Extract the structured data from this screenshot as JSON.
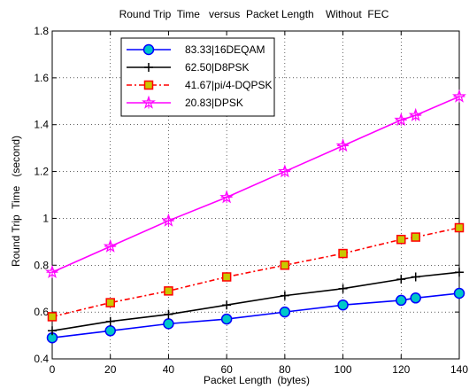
{
  "chart_data": {
    "type": "line",
    "title": "Round Trip  Time   versus  Packet Length    Without  FEC",
    "xlabel": "Packet Length  (bytes)",
    "ylabel": "Round Trip  Time   (second)",
    "xlim": [
      0,
      140
    ],
    "ylim": [
      0.4,
      1.8
    ],
    "xticks": [
      0,
      20,
      40,
      60,
      80,
      100,
      120,
      140
    ],
    "yticks": [
      0.4,
      0.6,
      0.8,
      1,
      1.2,
      1.4,
      1.6,
      1.8
    ],
    "xtick_labels": [
      "0",
      "20",
      "40",
      "60",
      "80",
      "100",
      "120",
      "140"
    ],
    "ytick_labels": [
      "0.4",
      "0.6",
      "0.8",
      "1",
      "1.2",
      "1.4",
      "1.6",
      "1.8"
    ],
    "grid": true,
    "legend_position": "top-left",
    "x": [
      0,
      20,
      40,
      60,
      80,
      100,
      120,
      125,
      140
    ],
    "series": [
      {
        "name": "83.33|16DEQAM",
        "color": "#0000ff",
        "marker": "circle",
        "line_style": "solid",
        "values": [
          0.49,
          0.52,
          0.55,
          0.57,
          0.6,
          0.63,
          0.65,
          0.66,
          0.68
        ]
      },
      {
        "name": "62.50|D8PSK",
        "color": "#000000",
        "marker": "plus",
        "line_style": "solid",
        "values": [
          0.52,
          0.56,
          0.59,
          0.63,
          0.67,
          0.7,
          0.74,
          0.75,
          0.77
        ]
      },
      {
        "name": "41.67|pi/4-DQPSK",
        "color": "#ff0000",
        "marker_face": "#c8c800",
        "marker": "square",
        "line_style": "dashdot",
        "values": [
          0.58,
          0.64,
          0.69,
          0.75,
          0.8,
          0.85,
          0.91,
          0.92,
          0.96
        ]
      },
      {
        "name": "20.83|DPSK",
        "color": "#ff00ff",
        "marker": "star",
        "line_style": "solid",
        "values": [
          0.77,
          0.88,
          0.99,
          1.09,
          1.2,
          1.31,
          1.42,
          1.44,
          1.52
        ]
      }
    ]
  }
}
